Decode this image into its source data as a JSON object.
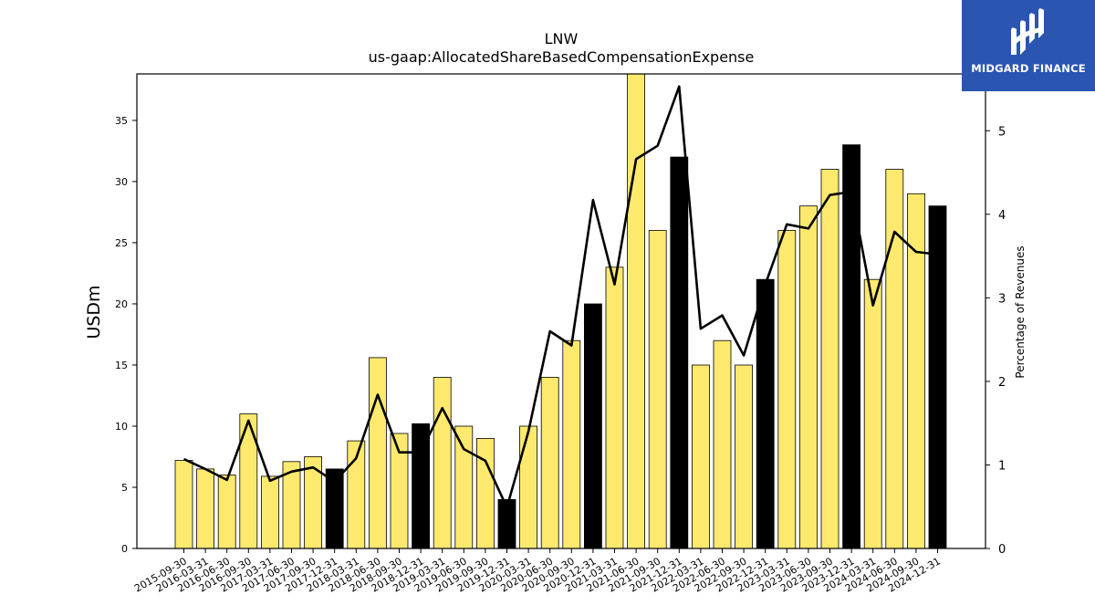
{
  "logo": {
    "text": "MIDGARD FINANCE",
    "icon": "midgard-logo-icon",
    "background": "#2a55b0"
  },
  "chart_data": {
    "type": "bar",
    "title": "LNW",
    "subtitle": "us-gaap:AllocatedShareBasedCompensationExpense",
    "ylabel": "USDm",
    "y2label": "Percentage of Revenues",
    "ylim": [
      0,
      38.8
    ],
    "y2lim": [
      0,
      5.68
    ],
    "yticks": [
      0,
      5,
      10,
      15,
      20,
      25,
      30,
      35
    ],
    "y2ticks": [
      0,
      1,
      2,
      3,
      4,
      5
    ],
    "grid": false,
    "colors": {
      "bar": "#fde96e",
      "highlight": "#000000",
      "line": "#000000"
    },
    "categories": [
      "2015-09-30",
      "2016-03-31",
      "2016-06-30",
      "2016-09-30",
      "2017-03-31",
      "2017-06-30",
      "2017-09-30",
      "2017-12-31",
      "2018-03-31",
      "2018-06-30",
      "2018-09-30",
      "2018-12-31",
      "2019-03-31",
      "2019-06-30",
      "2019-09-30",
      "2019-12-31",
      "2020-03-31",
      "2020-06-30",
      "2020-09-30",
      "2020-12-31",
      "2021-03-31",
      "2021-06-30",
      "2021-09-30",
      "2021-12-31",
      "2022-03-31",
      "2022-06-30",
      "2022-09-30",
      "2022-12-31",
      "2023-03-31",
      "2023-06-30",
      "2023-09-30",
      "2023-12-31",
      "2024-03-31",
      "2024-06-30",
      "2024-09-30",
      "2024-12-31"
    ],
    "series": [
      {
        "type": "bar",
        "values": [
          7.2,
          6.5,
          6.0,
          11.0,
          5.9,
          7.1,
          7.5,
          6.5,
          8.8,
          15.6,
          9.4,
          10.2,
          14.0,
          10.0,
          9.0,
          4.0,
          10.0,
          14.0,
          17.0,
          20.0,
          23.0,
          39.0,
          26.0,
          32.0,
          15.0,
          17.0,
          15.0,
          22.0,
          26.0,
          28.0,
          31.0,
          33.0,
          22.0,
          31.0,
          29.0,
          28.0
        ],
        "highlight": [
          false,
          false,
          false,
          false,
          false,
          false,
          false,
          true,
          false,
          false,
          false,
          true,
          false,
          false,
          false,
          true,
          false,
          false,
          false,
          true,
          false,
          false,
          false,
          true,
          false,
          false,
          false,
          true,
          false,
          false,
          false,
          true,
          false,
          false,
          false,
          true
        ]
      },
      {
        "type": "line",
        "axis": "right",
        "values": [
          1.07,
          0.95,
          0.82,
          1.53,
          0.81,
          0.92,
          0.97,
          0.8,
          1.08,
          1.84,
          1.15,
          1.15,
          1.68,
          1.19,
          1.05,
          0.49,
          1.4,
          2.6,
          2.43,
          4.17,
          3.16,
          4.66,
          4.82,
          5.53,
          2.63,
          2.79,
          2.31,
          3.16,
          3.88,
          3.83,
          4.23,
          4.27,
          2.91,
          3.79,
          3.55,
          3.52
        ]
      }
    ]
  }
}
